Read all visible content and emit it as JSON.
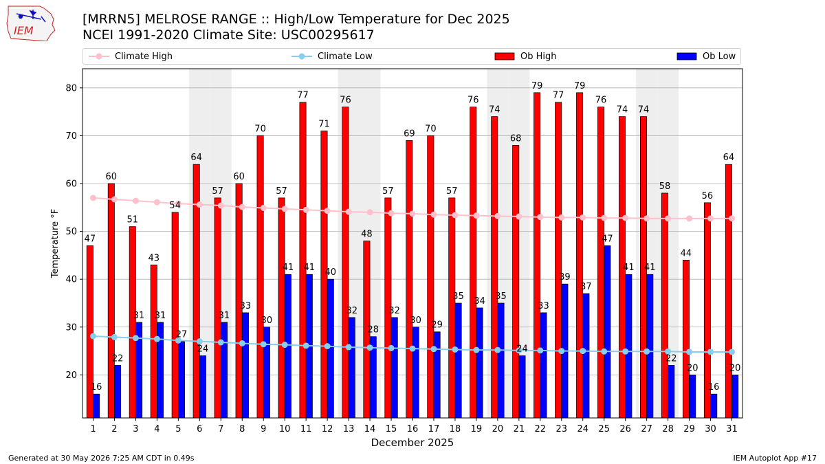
{
  "title_line1": "[MRRN5] MELROSE RANGE :: High/Low Temperature for Dec 2025",
  "title_line2": "NCEI 1991-2020 Climate Site: USC00295617",
  "logo_text": "IEM",
  "footer_left": "Generated at 30 May 2026 7:25 AM CDT in 0.49s",
  "footer_right": "IEM Autoplot App #17",
  "legend": [
    {
      "label": "Climate High",
      "kind": "line",
      "color": "#ffc0cb"
    },
    {
      "label": "Climate Low",
      "kind": "line",
      "color": "#87ceeb"
    },
    {
      "label": "Ob High",
      "kind": "bar",
      "color": "#ff0000"
    },
    {
      "label": "Ob Low",
      "kind": "bar",
      "color": "#0000ff"
    }
  ],
  "colors": {
    "ob_high": "#ff0000",
    "ob_low": "#0000ff",
    "climate_high": "#ffc0cb",
    "climate_low": "#87ceeb",
    "weekend_band": "#eeeeee",
    "grid": "#b0b0b0"
  },
  "chart_data": {
    "type": "bar",
    "xlabel": "December 2025",
    "ylabel": "Temperature °F",
    "ylim": [
      11,
      84
    ],
    "yticks": [
      20,
      30,
      40,
      50,
      60,
      70,
      80
    ],
    "grid": "horizontal",
    "shaded_days": [
      6,
      7,
      13,
      14,
      20,
      21,
      27,
      28
    ],
    "categories": [
      "1",
      "2",
      "3",
      "4",
      "5",
      "6",
      "7",
      "8",
      "9",
      "10",
      "11",
      "12",
      "13",
      "14",
      "15",
      "16",
      "17",
      "18",
      "19",
      "20",
      "21",
      "22",
      "23",
      "24",
      "25",
      "26",
      "27",
      "28",
      "29",
      "30",
      "31"
    ],
    "series": [
      {
        "name": "Ob High",
        "type": "bar",
        "values": [
          47,
          60,
          51,
          43,
          54,
          64,
          57,
          60,
          70,
          57,
          77,
          71,
          76,
          48,
          57,
          69,
          70,
          57,
          76,
          74,
          68,
          79,
          77,
          79,
          76,
          74,
          74,
          58,
          44,
          56,
          64
        ]
      },
      {
        "name": "Ob Low",
        "type": "bar",
        "values": [
          16,
          22,
          31,
          31,
          27,
          24,
          31,
          33,
          30,
          41,
          41,
          40,
          32,
          28,
          32,
          30,
          29,
          35,
          34,
          35,
          24,
          33,
          39,
          37,
          47,
          41,
          41,
          22,
          20,
          16,
          20
        ]
      },
      {
        "name": "Climate High",
        "type": "line",
        "values": [
          57.0,
          56.7,
          56.4,
          56.1,
          55.8,
          55.6,
          55.4,
          55.1,
          54.9,
          54.7,
          54.5,
          54.3,
          54.1,
          54.0,
          53.8,
          53.7,
          53.5,
          53.4,
          53.3,
          53.2,
          53.1,
          53.0,
          52.9,
          52.9,
          52.8,
          52.8,
          52.7,
          52.7,
          52.7,
          52.7,
          52.7
        ]
      },
      {
        "name": "Climate Low",
        "type": "line",
        "values": [
          28.1,
          27.9,
          27.7,
          27.5,
          27.2,
          27.0,
          26.8,
          26.6,
          26.4,
          26.3,
          26.1,
          26.0,
          25.8,
          25.7,
          25.6,
          25.5,
          25.4,
          25.3,
          25.2,
          25.2,
          25.1,
          25.1,
          25.0,
          25.0,
          24.9,
          24.9,
          24.9,
          24.9,
          24.8,
          24.8,
          24.8
        ]
      }
    ]
  }
}
